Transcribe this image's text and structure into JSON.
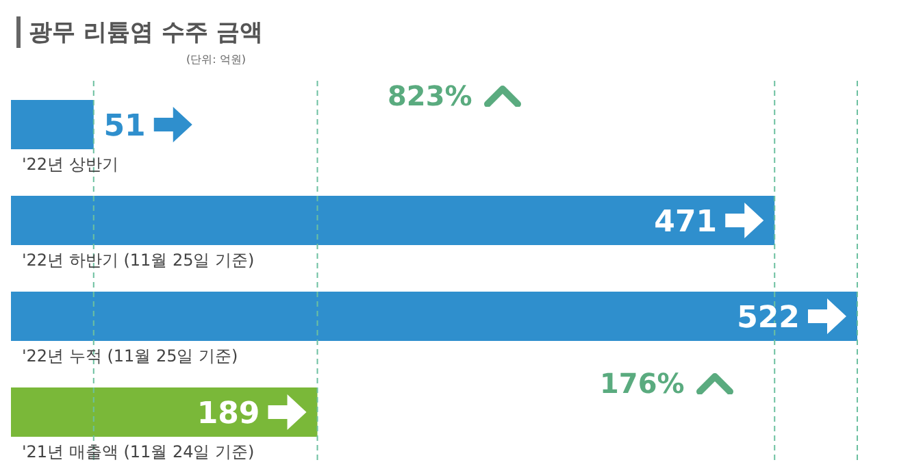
{
  "chart_data": {
    "type": "bar",
    "orientation": "horizontal",
    "title": "광무 리튬염 수주 금액",
    "subtitle": "(단위: 억원)",
    "categories": [
      "'22년 상반기",
      "'22년 하반기 (11월 25일 기준)",
      "'22년 누적 (11월 25일 기준)",
      "'21년 매출액 (11월 24일 기준)"
    ],
    "values": [
      51,
      471,
      522,
      189
    ],
    "colors": [
      "#2f8fcd",
      "#2f8fcd",
      "#2f8fcd",
      "#7ab839"
    ],
    "data_labels": true,
    "ref_lines": [
      {
        "axis": "x",
        "value": 51,
        "color": "#6cc0a0",
        "line_style": "dashed"
      },
      {
        "axis": "x",
        "value": 471,
        "color": "#6cc0a0",
        "line_style": "dashed"
      },
      {
        "axis": "x",
        "value": 522,
        "color": "#6cc0a0",
        "line_style": "dashed"
      },
      {
        "axis": "x",
        "value": 189,
        "color": "#6cc0a0",
        "line_style": "dashed"
      }
    ],
    "annotations": [
      "823%",
      "176%"
    ]
  }
}
